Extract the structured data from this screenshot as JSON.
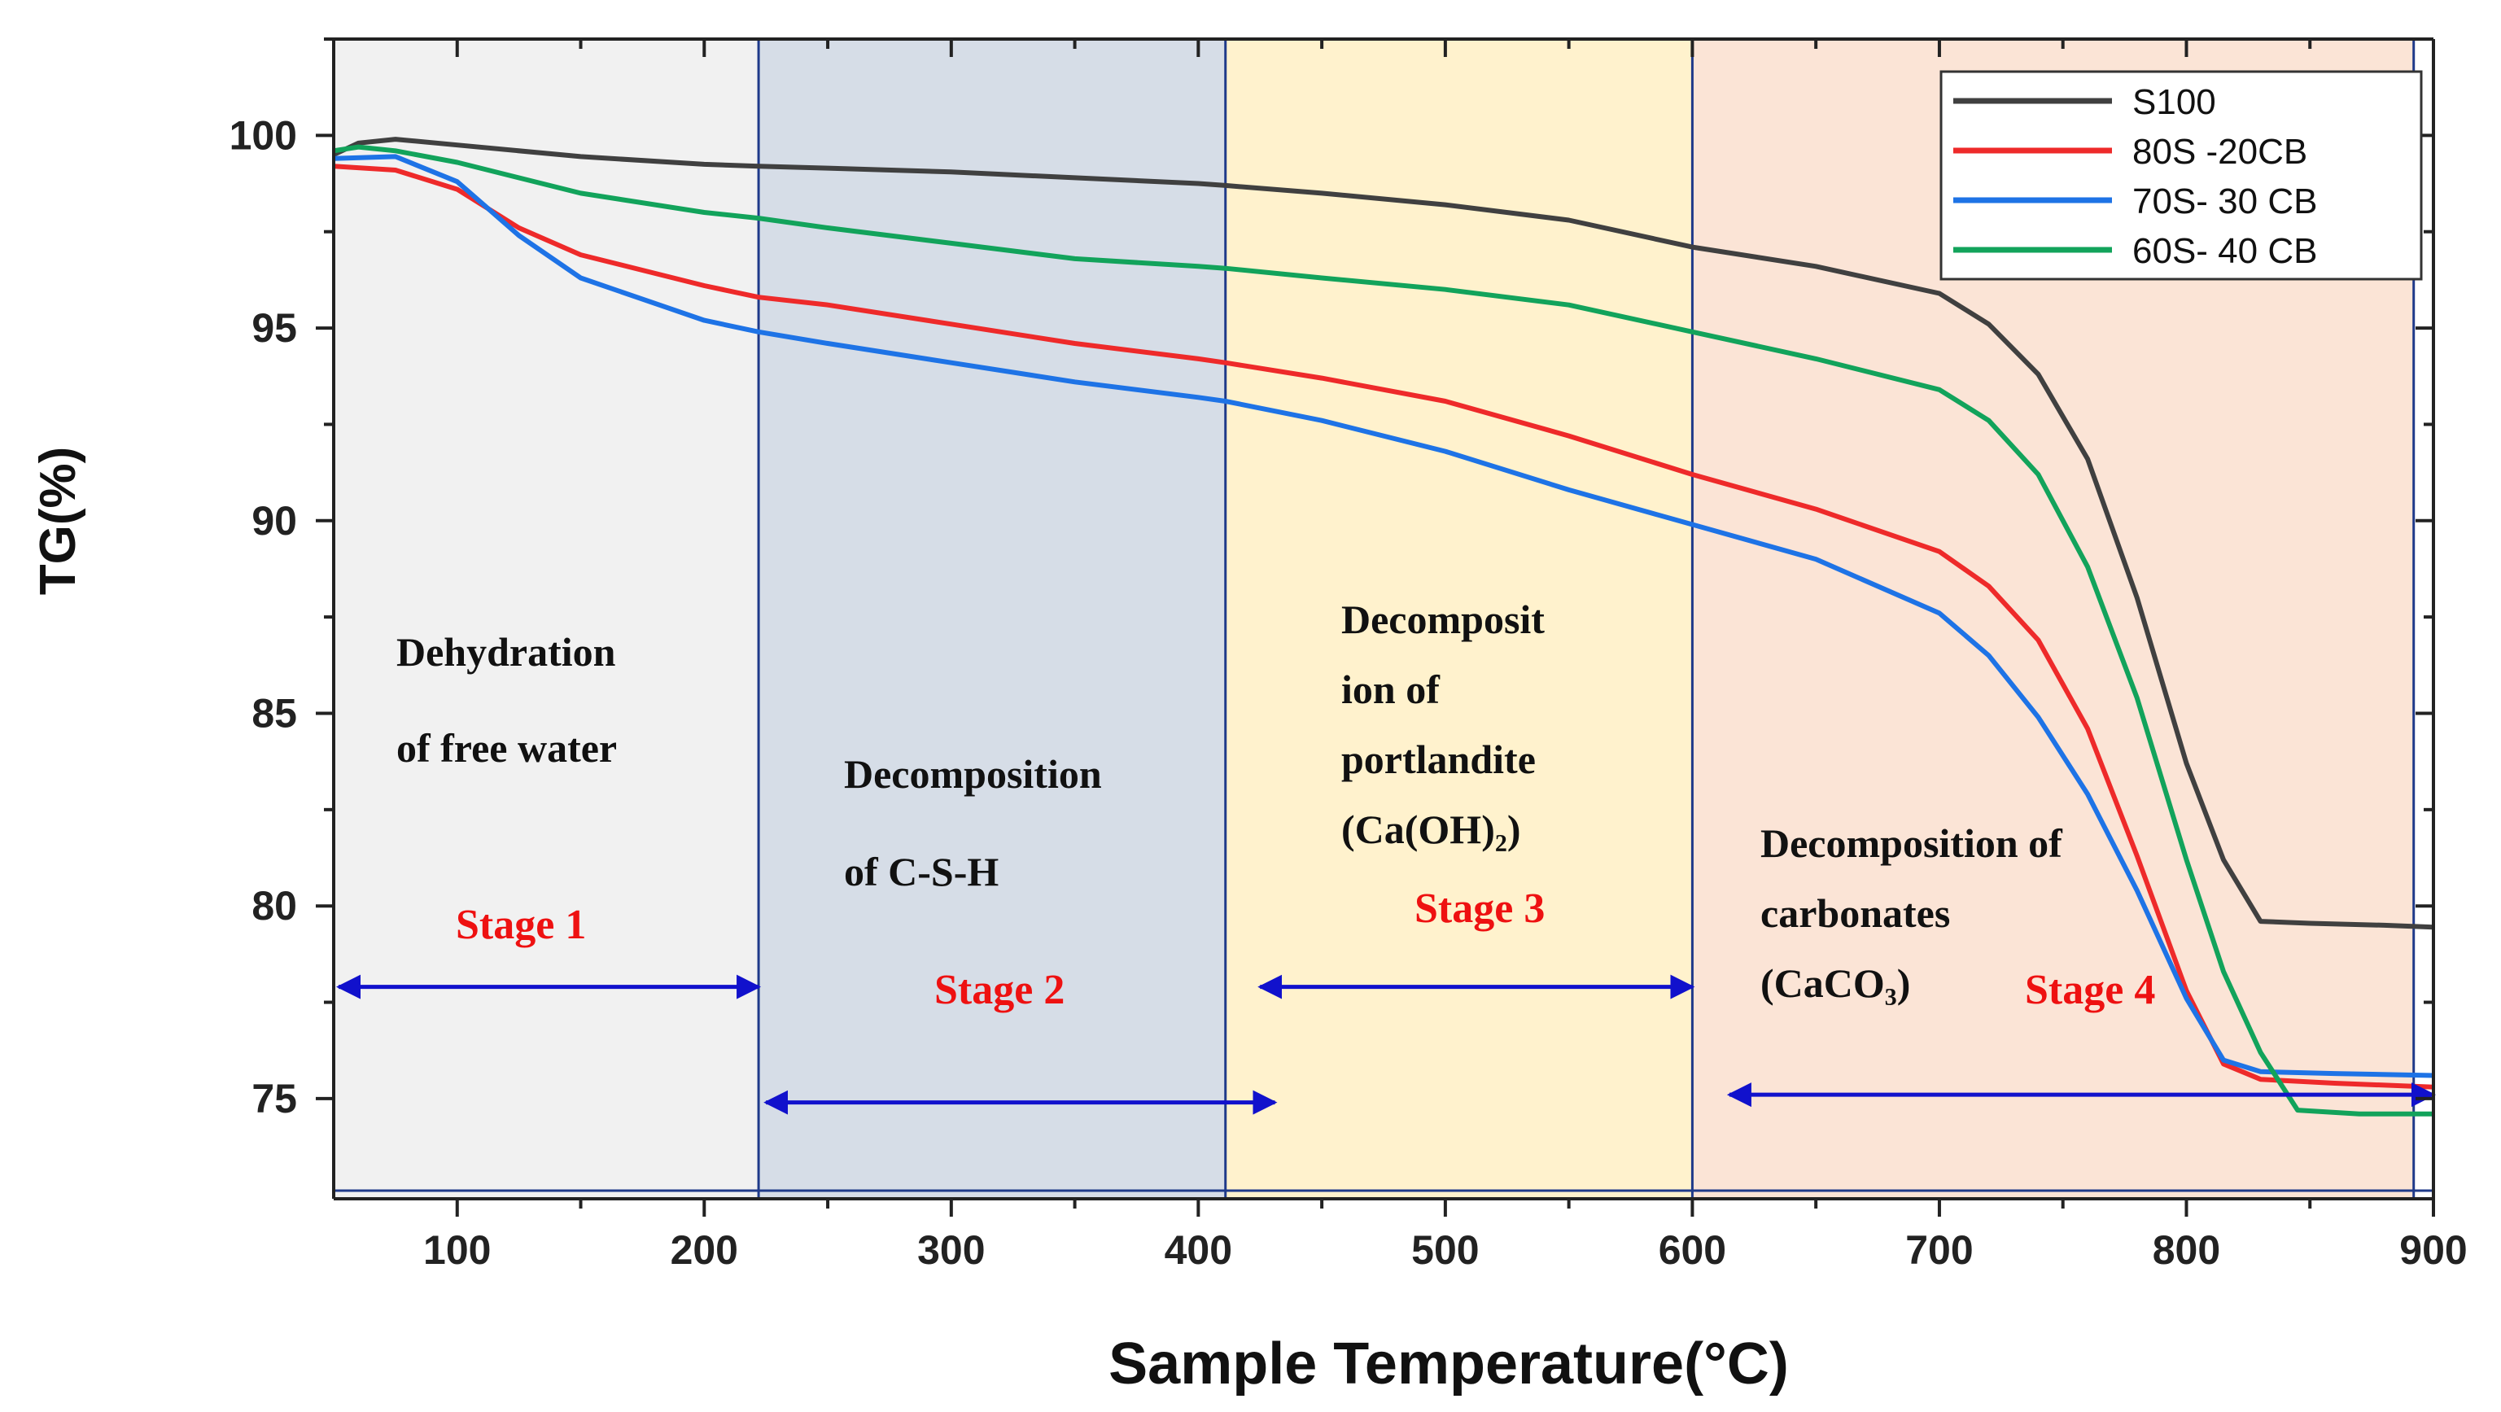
{
  "chart_data": {
    "type": "line",
    "xlabel": "Sample Temperature(°C)",
    "ylabel": "TG(%)",
    "xlim": [
      50,
      900
    ],
    "ylim": [
      72.4,
      102.5
    ],
    "xticks": [
      100,
      200,
      300,
      400,
      500,
      600,
      700,
      800,
      900
    ],
    "yticks": [
      75,
      80,
      85,
      90,
      95,
      100
    ],
    "grid": false,
    "legend_position": "top-right",
    "regions": [
      {
        "name": "stage-1",
        "x_start": 50,
        "x_end": 222,
        "color": "#f1f1f1",
        "text": [
          "Dehydration",
          "of free water"
        ],
        "stage_label": "Stage 1",
        "arrow": {
          "x_start": 52,
          "x_end": 222,
          "y": 77.9
        }
      },
      {
        "name": "stage-2",
        "x_start": 222,
        "x_end": 411,
        "color": "#d6dde7",
        "text": [
          "Decomposition",
          "of C-S-H"
        ],
        "stage_label": "Stage 2",
        "arrow": {
          "x_start": 225,
          "x_end": 431,
          "y": 74.9
        }
      },
      {
        "name": "stage-3",
        "x_start": 411,
        "x_end": 600,
        "color": "#fff2cd",
        "text": [
          "Decomposit",
          "ion of",
          "portlandite",
          "(Ca(OH)₂)"
        ],
        "stage_label": "Stage 3",
        "arrow": {
          "x_start": 425,
          "x_end": 600,
          "y": 77.9
        }
      },
      {
        "name": "stage-4",
        "x_start": 600,
        "x_end": 892,
        "color": "#fbe4d6",
        "text": [
          "Decomposition of",
          "carbonates",
          "(CaCO₃)"
        ],
        "stage_label": "Stage 4",
        "arrow": {
          "x_start": 615,
          "x_end": 900,
          "y": 75.1
        }
      }
    ],
    "series": [
      {
        "name": "S100",
        "color": "#404040",
        "x": [
          50,
          60,
          75,
          100,
          150,
          200,
          222,
          250,
          300,
          350,
          400,
          411,
          450,
          500,
          550,
          600,
          650,
          700,
          720,
          740,
          760,
          780,
          800,
          815,
          830,
          850,
          880,
          900
        ],
        "y": [
          99.5,
          99.8,
          99.9,
          99.75,
          99.45,
          99.25,
          99.2,
          99.15,
          99.05,
          98.9,
          98.75,
          98.7,
          98.5,
          98.2,
          97.8,
          97.1,
          96.6,
          95.9,
          95.1,
          93.8,
          91.6,
          88.0,
          83.7,
          81.2,
          79.6,
          79.55,
          79.5,
          79.45
        ]
      },
      {
        "name": "80S -20CB",
        "color": "#ee2a2a",
        "x": [
          50,
          75,
          100,
          125,
          150,
          200,
          222,
          250,
          300,
          350,
          400,
          411,
          450,
          500,
          550,
          600,
          650,
          700,
          720,
          740,
          760,
          780,
          800,
          815,
          830,
          860,
          900
        ],
        "y": [
          99.2,
          99.1,
          98.6,
          97.6,
          96.9,
          96.1,
          95.8,
          95.6,
          95.1,
          94.6,
          94.2,
          94.1,
          93.7,
          93.1,
          92.2,
          91.2,
          90.3,
          89.2,
          88.3,
          86.9,
          84.6,
          81.3,
          77.8,
          75.9,
          75.5,
          75.4,
          75.3
        ]
      },
      {
        "name": "70S- 30 CB",
        "color": "#1e73e6",
        "x": [
          50,
          75,
          100,
          125,
          150,
          200,
          222,
          250,
          300,
          350,
          400,
          411,
          450,
          500,
          550,
          600,
          650,
          700,
          720,
          740,
          760,
          780,
          800,
          815,
          830,
          860,
          900
        ],
        "y": [
          99.4,
          99.45,
          98.8,
          97.4,
          96.3,
          95.2,
          94.9,
          94.6,
          94.1,
          93.6,
          93.2,
          93.1,
          92.6,
          91.8,
          90.8,
          89.9,
          89.0,
          87.6,
          86.5,
          84.9,
          82.9,
          80.4,
          77.6,
          76.0,
          75.7,
          75.65,
          75.6
        ]
      },
      {
        "name": "60S- 40 CB",
        "color": "#12a35b",
        "x": [
          50,
          60,
          75,
          100,
          150,
          200,
          222,
          250,
          300,
          350,
          400,
          411,
          450,
          500,
          550,
          600,
          650,
          700,
          720,
          740,
          760,
          780,
          800,
          815,
          830,
          845,
          870,
          900
        ],
        "y": [
          99.6,
          99.7,
          99.6,
          99.3,
          98.5,
          98.0,
          97.85,
          97.6,
          97.2,
          96.8,
          96.6,
          96.55,
          96.3,
          96.0,
          95.6,
          94.9,
          94.2,
          93.4,
          92.6,
          91.2,
          88.8,
          85.4,
          81.2,
          78.3,
          76.2,
          74.7,
          74.6,
          74.6
        ]
      }
    ]
  }
}
